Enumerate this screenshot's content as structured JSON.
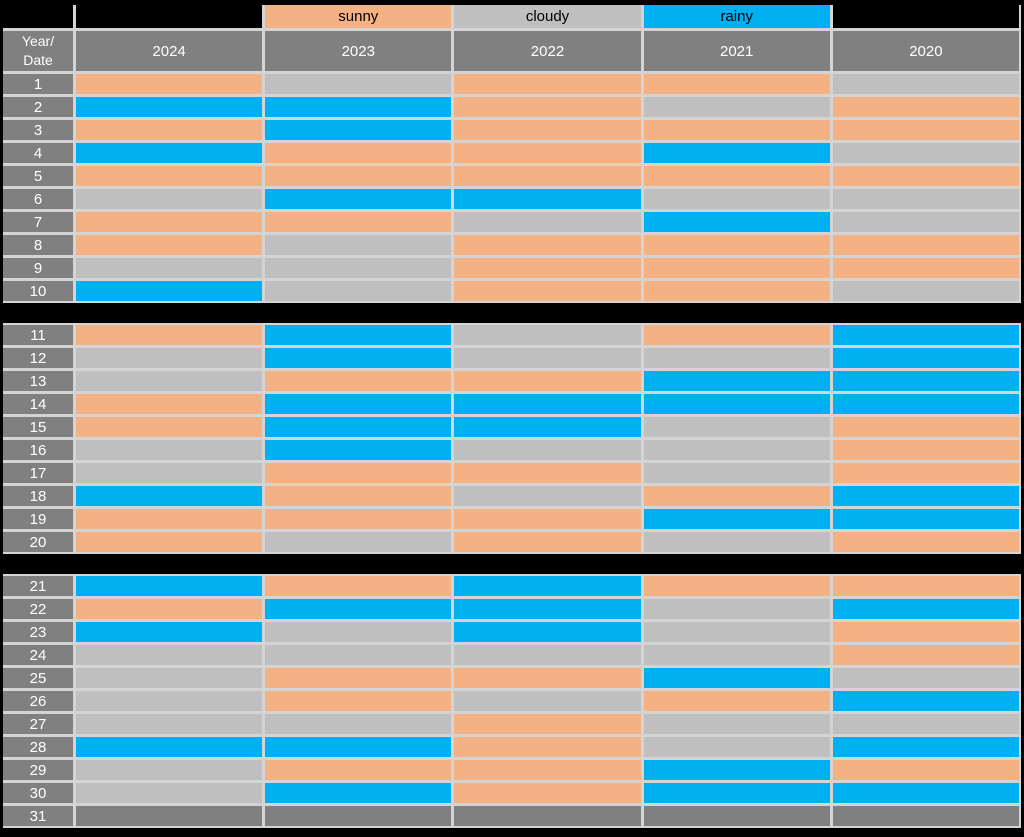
{
  "colors": {
    "background": "#000000",
    "grout": "#D4D4D4",
    "header_bg": "#808080",
    "header_text": "#FFFFFF",
    "legend_text": "#000000",
    "sunny": "#F4B183",
    "cloudy": "#BFBFBF",
    "rainy": "#00B0F0",
    "none": "#808080"
  },
  "header": {
    "corner": "Year/\nDate"
  },
  "chart_data": {
    "type": "heatmap",
    "title": "",
    "x_axis_label": "Year",
    "y_axis_label": "Date",
    "x_categories": [
      "2024",
      "2023",
      "2022",
      "2021",
      "2020"
    ],
    "y_categories": [
      "1",
      "2",
      "3",
      "4",
      "5",
      "6",
      "7",
      "8",
      "9",
      "10",
      "11",
      "12",
      "13",
      "14",
      "15",
      "16",
      "17",
      "18",
      "19",
      "20",
      "21",
      "22",
      "23",
      "24",
      "25",
      "26",
      "27",
      "28",
      "29",
      "30",
      "31"
    ],
    "legend_entries": [
      {
        "label": "sunny",
        "color": "#F4B183"
      },
      {
        "label": "cloudy",
        "color": "#BFBFBF"
      },
      {
        "label": "rainy",
        "color": "#00B0F0"
      }
    ],
    "no_data_color": "#808080",
    "row_blocks": [
      [
        1,
        10
      ],
      [
        11,
        20
      ],
      [
        21,
        31
      ]
    ],
    "rows": [
      {
        "date": "1",
        "values": [
          "sunny",
          "cloudy",
          "sunny",
          "sunny",
          "cloudy"
        ]
      },
      {
        "date": "2",
        "values": [
          "rainy",
          "rainy",
          "sunny",
          "cloudy",
          "sunny"
        ]
      },
      {
        "date": "3",
        "values": [
          "sunny",
          "rainy",
          "sunny",
          "sunny",
          "sunny"
        ]
      },
      {
        "date": "4",
        "values": [
          "rainy",
          "sunny",
          "sunny",
          "rainy",
          "cloudy"
        ]
      },
      {
        "date": "5",
        "values": [
          "sunny",
          "sunny",
          "sunny",
          "sunny",
          "sunny"
        ]
      },
      {
        "date": "6",
        "values": [
          "cloudy",
          "rainy",
          "rainy",
          "cloudy",
          "cloudy"
        ]
      },
      {
        "date": "7",
        "values": [
          "sunny",
          "sunny",
          "cloudy",
          "rainy",
          "cloudy"
        ]
      },
      {
        "date": "8",
        "values": [
          "sunny",
          "cloudy",
          "sunny",
          "sunny",
          "sunny"
        ]
      },
      {
        "date": "9",
        "values": [
          "cloudy",
          "cloudy",
          "sunny",
          "sunny",
          "sunny"
        ]
      },
      {
        "date": "10",
        "values": [
          "rainy",
          "cloudy",
          "sunny",
          "sunny",
          "cloudy"
        ]
      },
      {
        "date": "11",
        "values": [
          "sunny",
          "rainy",
          "cloudy",
          "sunny",
          "rainy"
        ]
      },
      {
        "date": "12",
        "values": [
          "cloudy",
          "rainy",
          "cloudy",
          "cloudy",
          "rainy"
        ]
      },
      {
        "date": "13",
        "values": [
          "cloudy",
          "sunny",
          "sunny",
          "rainy",
          "rainy"
        ]
      },
      {
        "date": "14",
        "values": [
          "sunny",
          "rainy",
          "rainy",
          "rainy",
          "rainy"
        ]
      },
      {
        "date": "15",
        "values": [
          "sunny",
          "rainy",
          "rainy",
          "cloudy",
          "sunny"
        ]
      },
      {
        "date": "16",
        "values": [
          "cloudy",
          "rainy",
          "cloudy",
          "cloudy",
          "sunny"
        ]
      },
      {
        "date": "17",
        "values": [
          "cloudy",
          "sunny",
          "sunny",
          "cloudy",
          "sunny"
        ]
      },
      {
        "date": "18",
        "values": [
          "rainy",
          "sunny",
          "cloudy",
          "sunny",
          "rainy"
        ]
      },
      {
        "date": "19",
        "values": [
          "sunny",
          "sunny",
          "sunny",
          "rainy",
          "rainy"
        ]
      },
      {
        "date": "20",
        "values": [
          "sunny",
          "cloudy",
          "sunny",
          "cloudy",
          "sunny"
        ]
      },
      {
        "date": "21",
        "values": [
          "rainy",
          "sunny",
          "rainy",
          "sunny",
          "sunny"
        ]
      },
      {
        "date": "22",
        "values": [
          "sunny",
          "rainy",
          "rainy",
          "cloudy",
          "rainy"
        ]
      },
      {
        "date": "23",
        "values": [
          "rainy",
          "cloudy",
          "rainy",
          "cloudy",
          "sunny"
        ]
      },
      {
        "date": "24",
        "values": [
          "cloudy",
          "cloudy",
          "cloudy",
          "cloudy",
          "sunny"
        ]
      },
      {
        "date": "25",
        "values": [
          "cloudy",
          "sunny",
          "sunny",
          "rainy",
          "cloudy"
        ]
      },
      {
        "date": "26",
        "values": [
          "cloudy",
          "sunny",
          "cloudy",
          "sunny",
          "rainy"
        ]
      },
      {
        "date": "27",
        "values": [
          "cloudy",
          "cloudy",
          "sunny",
          "cloudy",
          "cloudy"
        ]
      },
      {
        "date": "28",
        "values": [
          "rainy",
          "rainy",
          "sunny",
          "cloudy",
          "rainy"
        ]
      },
      {
        "date": "29",
        "values": [
          "cloudy",
          "sunny",
          "sunny",
          "rainy",
          "sunny"
        ]
      },
      {
        "date": "30",
        "values": [
          "cloudy",
          "rainy",
          "sunny",
          "rainy",
          "rainy"
        ]
      },
      {
        "date": "31",
        "values": [
          "none",
          "none",
          "none",
          "none",
          "none"
        ]
      }
    ]
  }
}
